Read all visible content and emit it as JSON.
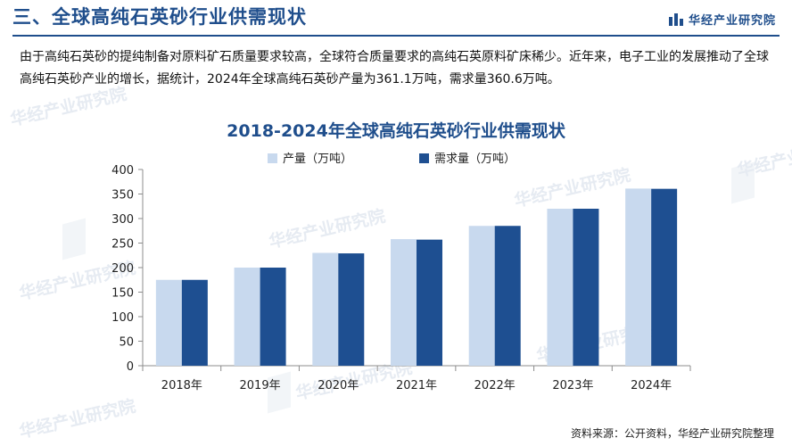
{
  "header": {
    "section_title": "三、全球高纯石英砂行业供需现状",
    "brand": "华经产业研究院"
  },
  "intro_text": "由于高纯石英砂的提纯制备对原料矿石质量要求较高，全球符合质量要求的高纯石英原料矿床稀少。近年来，电子工业的发展推动了全球高纯石英砂产业的增长，据统计，2024年全球高纯石英砂产量为361.1万吨，需求量360.6万吨。",
  "chart_data": {
    "type": "bar",
    "title": "2018-2024年全球高纯石英砂行业供需现状",
    "categories": [
      "2018年",
      "2019年",
      "2020年",
      "2021年",
      "2022年",
      "2023年",
      "2024年"
    ],
    "series": [
      {
        "name": "产量（万吨）",
        "color": "#c8d9ee",
        "values": [
          175,
          200,
          230,
          258,
          285,
          320,
          361.1
        ]
      },
      {
        "name": "需求量（万吨）",
        "color": "#1e4f91",
        "values": [
          175,
          200,
          229,
          257,
          285,
          320,
          360.6
        ]
      }
    ],
    "ylim": [
      0,
      400
    ],
    "yticks": [
      0,
      50,
      100,
      150,
      200,
      250,
      300,
      350,
      400
    ],
    "legend": "top-center",
    "grid": false,
    "xlabel": "",
    "ylabel": ""
  },
  "source": "资料来源：公开资料，华经产业研究院整理",
  "watermark_text": "华经产业研究院"
}
